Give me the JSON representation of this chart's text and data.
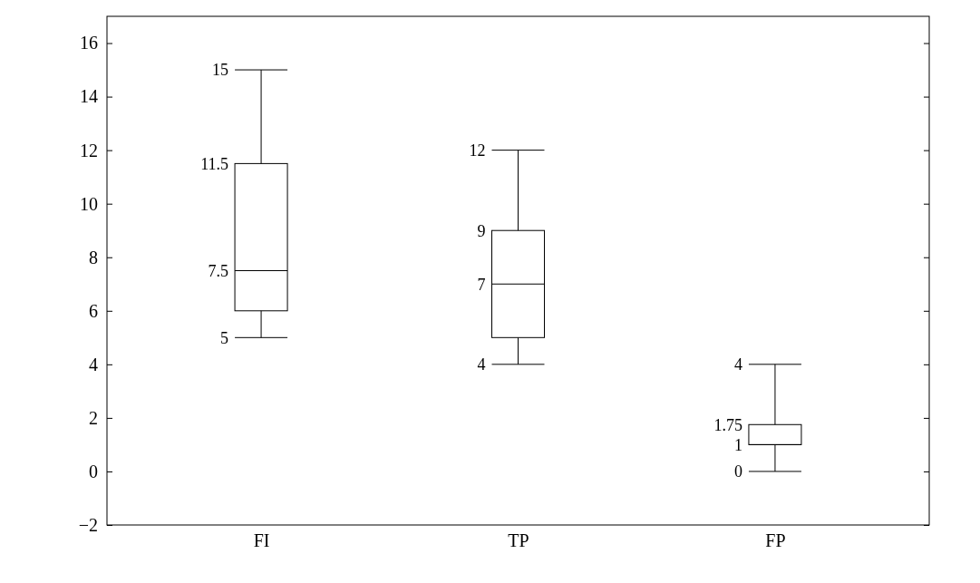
{
  "chart_data": {
    "type": "box",
    "categories": [
      "FI",
      "TP",
      "FP"
    ],
    "boxes": [
      {
        "low": 5,
        "q1": 6,
        "median": 7.5,
        "q3": 11.5,
        "high": 15
      },
      {
        "low": 4,
        "q1": 5,
        "median": 7,
        "q3": 9,
        "high": 12
      },
      {
        "low": 0,
        "q1": 1,
        "median": 1,
        "q3": 1.75,
        "high": 4
      }
    ],
    "ylim": [
      -2,
      17
    ],
    "yticks": [
      {
        "value": -2,
        "label": "−2"
      },
      0,
      2,
      4,
      6,
      8,
      10,
      12,
      14,
      16
    ],
    "annotations": [
      {
        "text": "15",
        "x": "FI",
        "y": 15
      },
      {
        "text": "11.5",
        "x": "FI",
        "y": 11.5
      },
      {
        "text": "7.5",
        "x": "FI",
        "y": 7.5
      },
      {
        "text": "5",
        "x": "FI",
        "y": 5
      },
      {
        "text": "12",
        "x": "TP",
        "y": 12
      },
      {
        "text": "9",
        "x": "TP",
        "y": 9
      },
      {
        "text": "7",
        "x": "TP",
        "y": 7
      },
      {
        "text": "4",
        "x": "TP",
        "y": 4
      },
      {
        "text": "4",
        "x": "FP",
        "y": 4
      },
      {
        "text": "1.75",
        "x": "FP",
        "y": 1.75
      },
      {
        "text": "1",
        "x": "FP",
        "y": 1
      },
      {
        "text": "0",
        "x": "FP",
        "y": 0
      }
    ],
    "grid": false
  }
}
